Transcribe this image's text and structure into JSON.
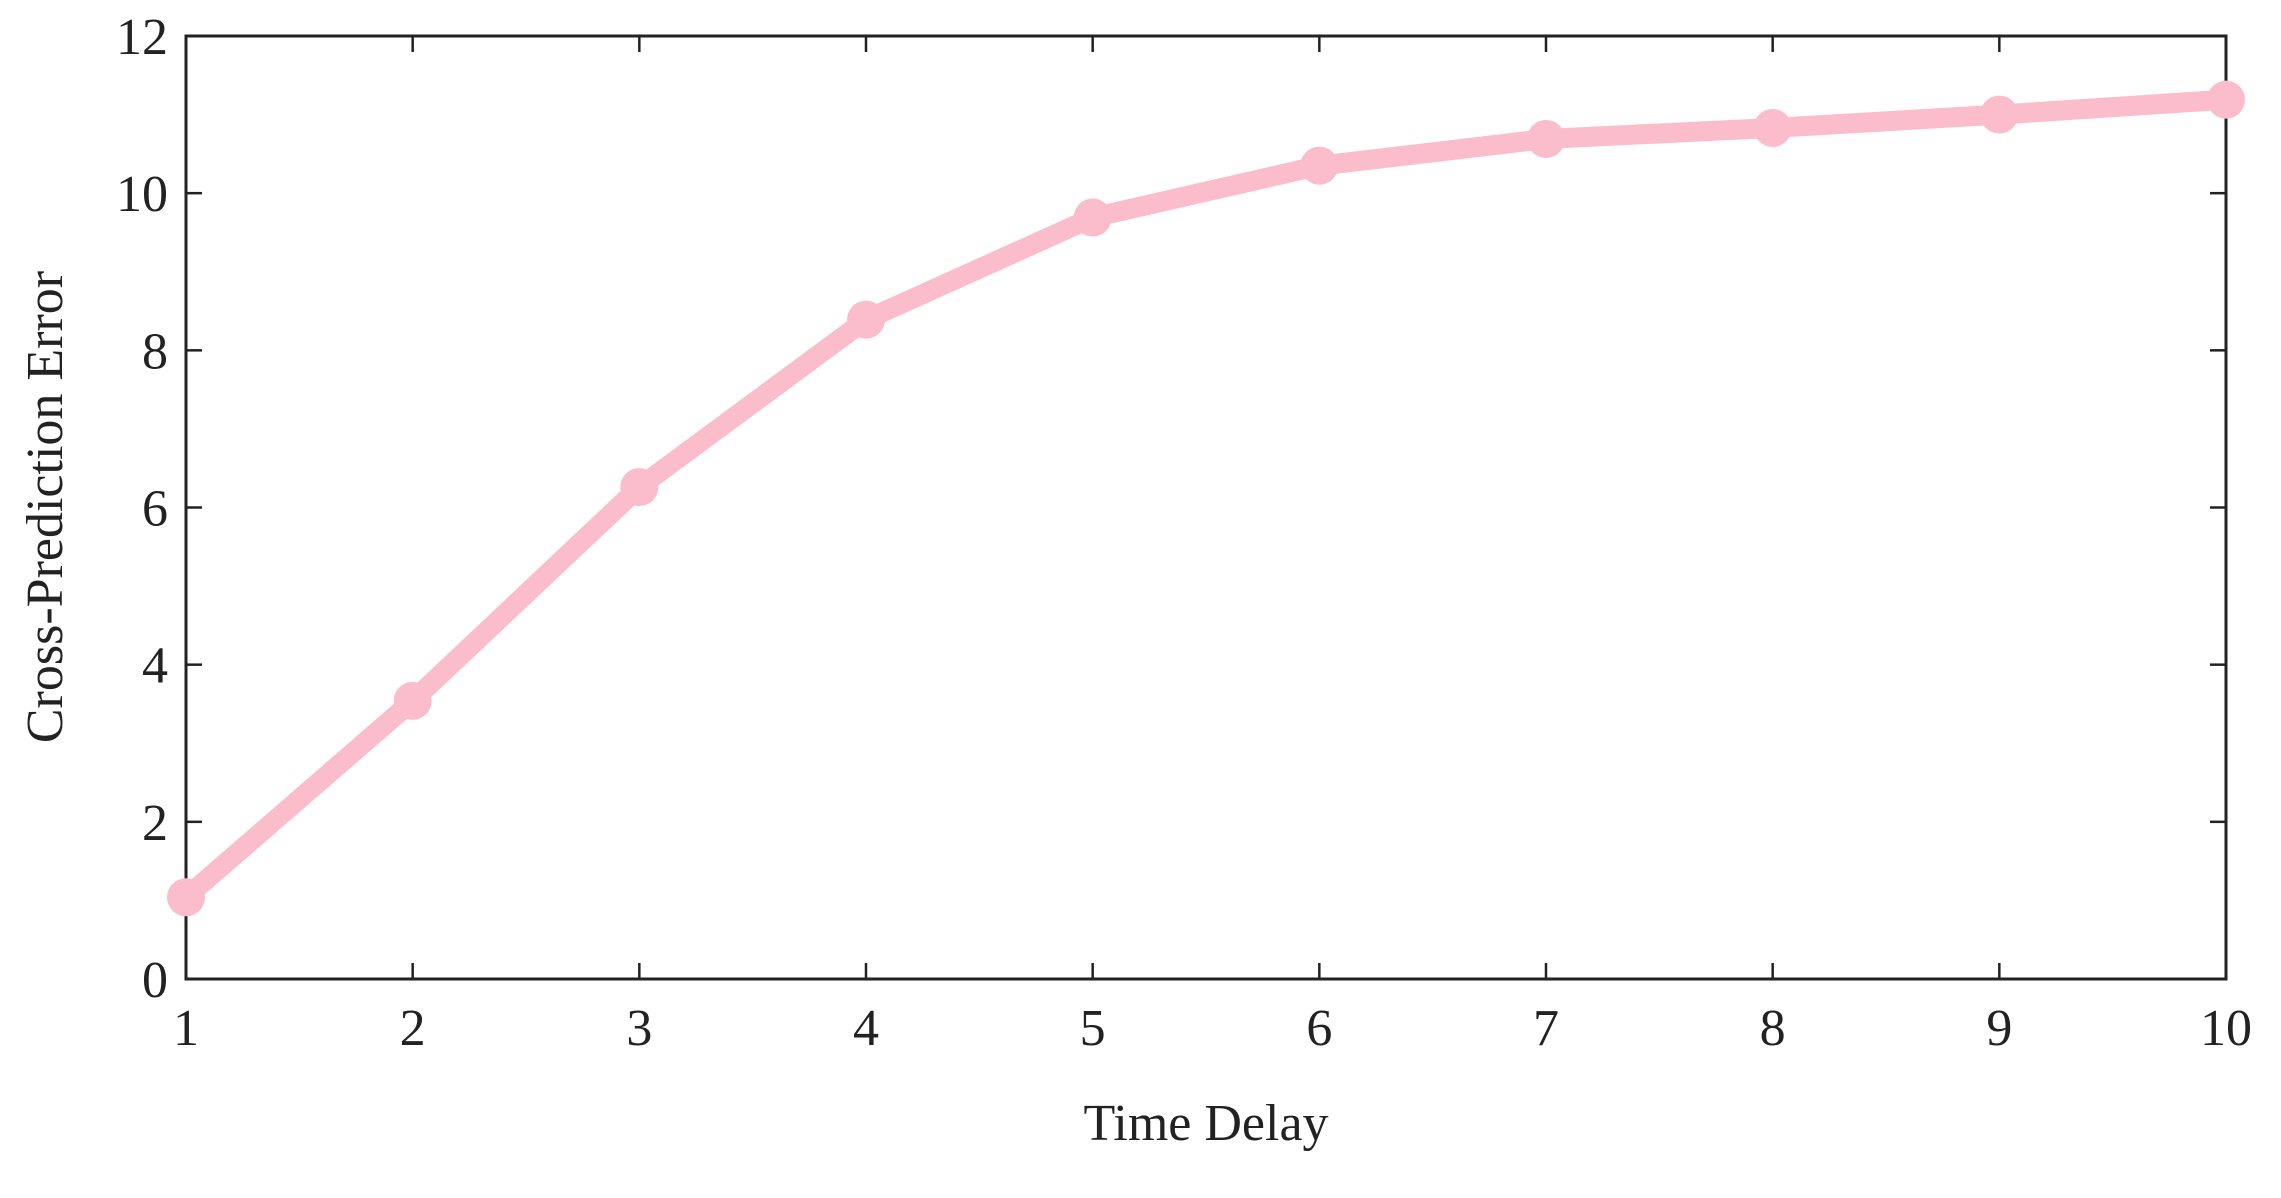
{
  "chart_data": {
    "type": "line",
    "xlabel": "Time Delay",
    "ylabel": "Cross-Prediction Error",
    "x": [
      1,
      2,
      3,
      4,
      5,
      6,
      7,
      8,
      9,
      10
    ],
    "series": [
      {
        "color": "#fbbccb",
        "values": [
          1.04,
          3.54,
          6.26,
          8.39,
          9.69,
          10.35,
          10.69,
          10.83,
          11.0,
          11.19
        ]
      }
    ],
    "xlim": [
      1,
      10
    ],
    "xticks": [
      1,
      2,
      3,
      4,
      5,
      6,
      7,
      8,
      9,
      10
    ],
    "ylim": [
      0,
      12
    ],
    "yticks": [
      0,
      2,
      4,
      6,
      8,
      10,
      12
    ]
  }
}
